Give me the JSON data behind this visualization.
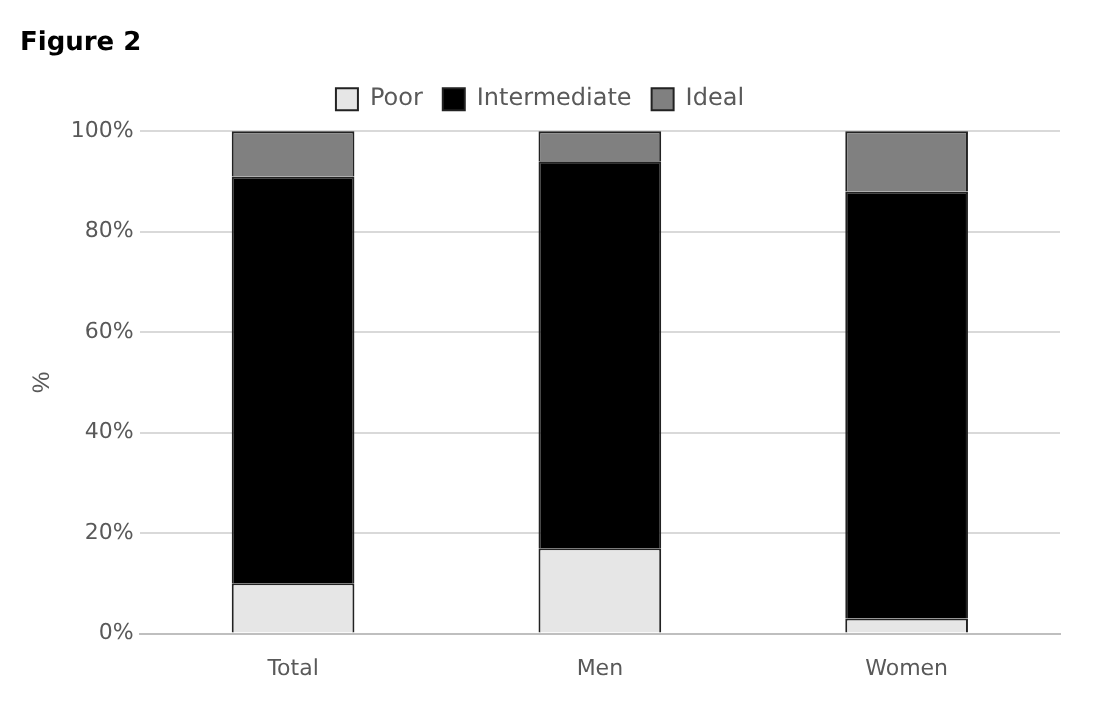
{
  "chart_data": {
    "type": "bar",
    "title": "Figure 2",
    "ylabel": "%",
    "categories": [
      "Total",
      "Men",
      "Women"
    ],
    "stacked": true,
    "series": [
      {
        "name": "Poor",
        "color": "#e6e6e6",
        "values": [
          10,
          17,
          3
        ]
      },
      {
        "name": "Intermediate",
        "color": "#000000",
        "values": [
          81,
          77,
          85
        ]
      },
      {
        "name": "Ideal",
        "color": "#808080",
        "values": [
          9,
          6,
          12
        ]
      }
    ],
    "ylim": [
      0,
      100
    ],
    "yticks": [
      {
        "value": 0,
        "label": "0%"
      },
      {
        "value": 20,
        "label": "20%"
      },
      {
        "value": 40,
        "label": "40%"
      },
      {
        "value": 60,
        "label": "60%"
      },
      {
        "value": 80,
        "label": "80%"
      },
      {
        "value": 100,
        "label": "100%"
      }
    ],
    "grid": "y",
    "legend": "top"
  }
}
